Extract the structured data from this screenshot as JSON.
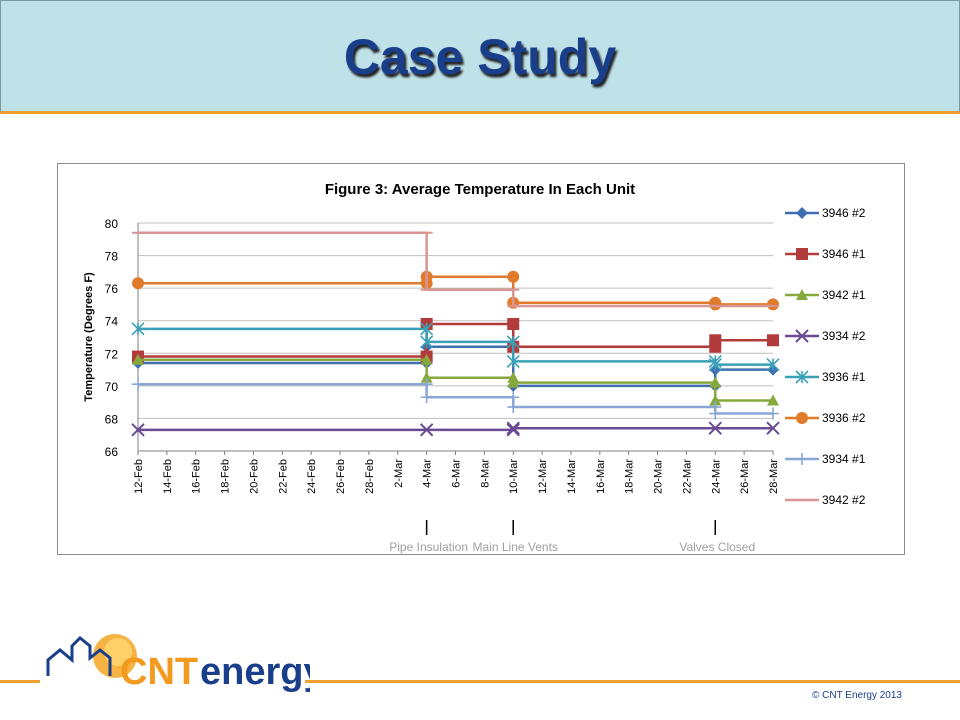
{
  "slide": {
    "title": "Case Study",
    "copyright": "© CNT Energy 2013",
    "logo_text": "CNTenergy"
  },
  "colors": {
    "title": "#1a3f8a",
    "header_bg": "#bfe2e8",
    "accent_rule": "#f0a030"
  },
  "chart_data": {
    "type": "line",
    "title": "Figure 3: Average Temperature In Each Unit",
    "xlabel": "",
    "ylabel": "Temperature (Degrees F)",
    "ylim": [
      66,
      80
    ],
    "yticks": [
      66,
      68,
      70,
      72,
      74,
      76,
      78,
      80
    ],
    "xticks": [
      "12-Feb",
      "14-Feb",
      "16-Feb",
      "18-Feb",
      "20-Feb",
      "22-Feb",
      "24-Feb",
      "26-Feb",
      "28-Feb",
      "2-Mar",
      "4-Mar",
      "6-Mar",
      "8-Mar",
      "10-Mar",
      "12-Mar",
      "14-Mar",
      "16-Mar",
      "18-Mar",
      "20-Mar",
      "22-Mar",
      "24-Mar",
      "26-Mar",
      "28-Mar"
    ],
    "legend_position": "right",
    "grid": "horizontal",
    "annotations": [
      {
        "x": "4-Mar",
        "text": "Pipe Insulation"
      },
      {
        "x": "10-Mar",
        "text": "Main Line Vents"
      },
      {
        "x": "24-Mar",
        "text": "Valves Closed"
      }
    ],
    "series": [
      {
        "name": "3946 #2",
        "color": "#3f6fb0",
        "marker": "diamond",
        "points": [
          [
            "12-Feb",
            71.4
          ],
          [
            "4-Mar",
            71.4
          ],
          [
            "4-Mar",
            72.4
          ],
          [
            "10-Mar",
            72.4
          ],
          [
            "10-Mar",
            70.0
          ],
          [
            "24-Mar",
            70.0
          ],
          [
            "24-Mar",
            71.0
          ],
          [
            "28-Mar",
            71.0
          ]
        ]
      },
      {
        "name": "3946 #1",
        "color": "#b23b3b",
        "marker": "square",
        "points": [
          [
            "12-Feb",
            71.8
          ],
          [
            "4-Mar",
            71.8
          ],
          [
            "4-Mar",
            73.8
          ],
          [
            "10-Mar",
            73.8
          ],
          [
            "10-Mar",
            72.4
          ],
          [
            "24-Mar",
            72.4
          ],
          [
            "24-Mar",
            72.8
          ],
          [
            "28-Mar",
            72.8
          ]
        ]
      },
      {
        "name": "3942 #1",
        "color": "#86a83c",
        "marker": "triangle",
        "points": [
          [
            "12-Feb",
            71.6
          ],
          [
            "4-Mar",
            71.6
          ],
          [
            "4-Mar",
            70.5
          ],
          [
            "10-Mar",
            70.5
          ],
          [
            "10-Mar",
            70.2
          ],
          [
            "24-Mar",
            70.2
          ],
          [
            "24-Mar",
            69.1
          ],
          [
            "28-Mar",
            69.1
          ]
        ]
      },
      {
        "name": "3934 #2",
        "color": "#6a4a93",
        "marker": "x",
        "points": [
          [
            "12-Feb",
            67.3
          ],
          [
            "4-Mar",
            67.3
          ],
          [
            "10-Mar",
            67.3
          ],
          [
            "10-Mar",
            67.4
          ],
          [
            "24-Mar",
            67.4
          ],
          [
            "28-Mar",
            67.4
          ]
        ]
      },
      {
        "name": "3936 #1",
        "color": "#3aa0b8",
        "marker": "star",
        "points": [
          [
            "12-Feb",
            73.5
          ],
          [
            "4-Mar",
            73.5
          ],
          [
            "4-Mar",
            72.7
          ],
          [
            "10-Mar",
            72.7
          ],
          [
            "10-Mar",
            71.5
          ],
          [
            "24-Mar",
            71.5
          ],
          [
            "24-Mar",
            71.3
          ],
          [
            "28-Mar",
            71.3
          ]
        ]
      },
      {
        "name": "3936 #2",
        "color": "#e07b2c",
        "marker": "circle",
        "points": [
          [
            "12-Feb",
            76.3
          ],
          [
            "4-Mar",
            76.3
          ],
          [
            "4-Mar",
            76.7
          ],
          [
            "10-Mar",
            76.7
          ],
          [
            "10-Mar",
            75.1
          ],
          [
            "24-Mar",
            75.1
          ],
          [
            "24-Mar",
            75.0
          ],
          [
            "28-Mar",
            75.0
          ]
        ]
      },
      {
        "name": "3934 #1",
        "color": "#8aa6d6",
        "marker": "plus",
        "points": [
          [
            "12-Feb",
            70.1
          ],
          [
            "4-Mar",
            70.1
          ],
          [
            "4-Mar",
            69.3
          ],
          [
            "10-Mar",
            69.3
          ],
          [
            "10-Mar",
            68.7
          ],
          [
            "24-Mar",
            68.7
          ],
          [
            "24-Mar",
            68.3
          ],
          [
            "28-Mar",
            68.3
          ]
        ]
      },
      {
        "name": "3942 #2",
        "color": "#d99593",
        "marker": "dash",
        "points": [
          [
            "12-Feb",
            79.4
          ],
          [
            "4-Mar",
            79.4
          ],
          [
            "4-Mar",
            75.9
          ],
          [
            "10-Mar",
            75.9
          ],
          [
            "10-Mar",
            74.9
          ],
          [
            "24-Mar",
            74.9
          ],
          [
            "28-Mar",
            74.9
          ]
        ]
      }
    ]
  }
}
